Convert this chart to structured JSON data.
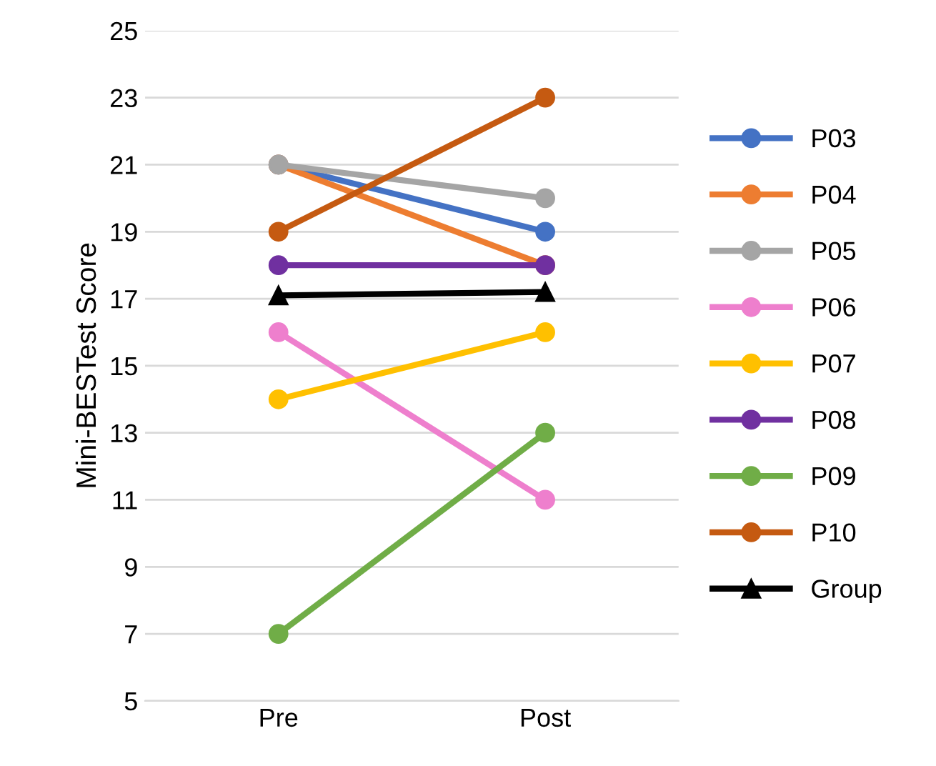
{
  "chart_data": {
    "type": "line",
    "ylabel": "Mini-BESTest Score",
    "categories": [
      "Pre",
      "Post"
    ],
    "ylim": [
      5,
      25
    ],
    "yticks": [
      5,
      7,
      9,
      11,
      13,
      15,
      17,
      19,
      21,
      23,
      25
    ],
    "grid": "y",
    "legend": "right",
    "marker": "circle",
    "line_style": "solid",
    "series": [
      {
        "name": "P03",
        "color": "#4472c4",
        "values": [
          21,
          19
        ]
      },
      {
        "name": "P04",
        "color": "#ed7d31",
        "values": [
          21,
          18
        ]
      },
      {
        "name": "P05",
        "color": "#a5a5a5",
        "values": [
          21,
          20
        ]
      },
      {
        "name": "P06",
        "color": "#ee7fcd",
        "values": [
          16,
          11
        ]
      },
      {
        "name": "P07",
        "color": "#ffc000",
        "values": [
          14,
          16
        ]
      },
      {
        "name": "P08",
        "color": "#7030a0",
        "values": [
          18,
          18
        ]
      },
      {
        "name": "P09",
        "color": "#70ad47",
        "values": [
          7,
          13
        ]
      },
      {
        "name": "P10",
        "color": "#c55a11",
        "values": [
          19,
          23
        ]
      },
      {
        "name": "Group",
        "color": "#000000",
        "values": [
          17.1,
          17.2
        ],
        "marker": "triangle"
      }
    ]
  }
}
